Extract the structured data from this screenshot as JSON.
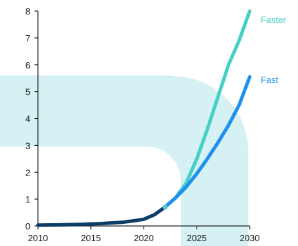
{
  "chart_data": {
    "type": "line",
    "title": "",
    "xlabel": "",
    "ylabel": "",
    "xlim": [
      2010,
      2030
    ],
    "ylim": [
      0,
      8
    ],
    "x_ticks": [
      "2010",
      "2015",
      "2020",
      "2025",
      "2030"
    ],
    "y_ticks": [
      "0",
      "1",
      "2",
      "3",
      "4",
      "5",
      "6",
      "7",
      "8"
    ],
    "grid": false,
    "series": [
      {
        "name": "",
        "color": "#0b3d66",
        "points": [
          [
            2010,
            0.03
          ],
          [
            2012,
            0.04
          ],
          [
            2014,
            0.06
          ],
          [
            2016,
            0.09
          ],
          [
            2018,
            0.14
          ],
          [
            2019,
            0.19
          ],
          [
            2020,
            0.25
          ],
          [
            2021,
            0.42
          ],
          [
            2022,
            0.7
          ]
        ]
      },
      {
        "name": "Faster",
        "color": "#45cfc6",
        "points": [
          [
            2022,
            0.7
          ],
          [
            2023,
            1.05
          ],
          [
            2024,
            1.6
          ],
          [
            2025,
            2.5
          ],
          [
            2026,
            3.6
          ],
          [
            2027,
            4.8
          ],
          [
            2028,
            6.0
          ],
          [
            2029,
            6.9
          ],
          [
            2030,
            8.0
          ]
        ]
      },
      {
        "name": "Fast",
        "color": "#1e8ff0",
        "points": [
          [
            2022,
            0.7
          ],
          [
            2023,
            1.05
          ],
          [
            2024,
            1.45
          ],
          [
            2025,
            1.95
          ],
          [
            2026,
            2.5
          ],
          [
            2027,
            3.1
          ],
          [
            2028,
            3.75
          ],
          [
            2029,
            4.5
          ],
          [
            2030,
            5.55
          ]
        ]
      }
    ],
    "labels": {
      "faster": "Faster",
      "fast": "Fast"
    },
    "background_colors": {
      "band": "#d5f1f4",
      "band_edge": "#c3e8ee"
    }
  }
}
